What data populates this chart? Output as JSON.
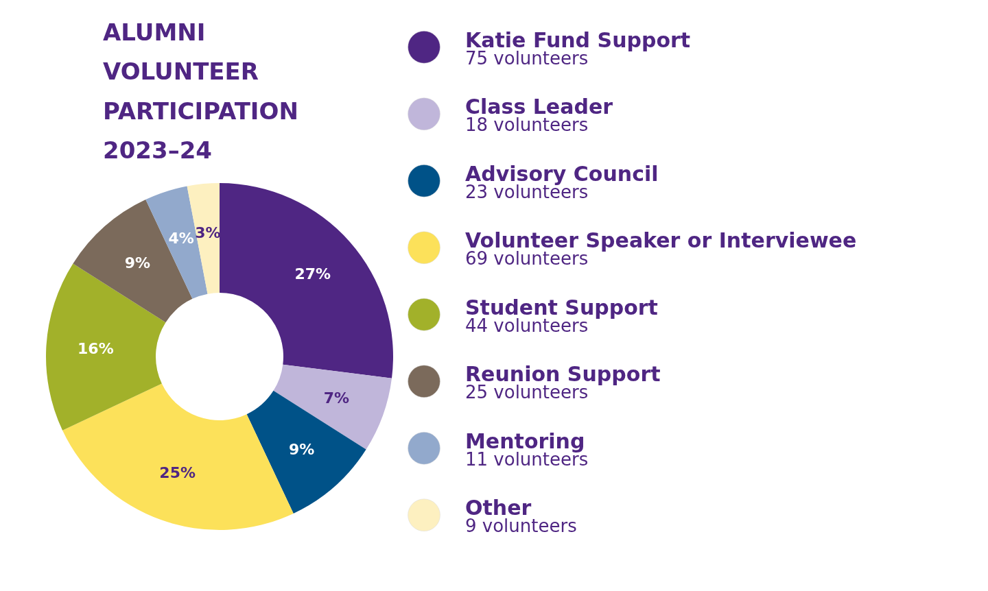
{
  "chart_data": {
    "type": "donut",
    "title": "ALUMNI VOLUNTEER PARTICIPATION 2023–24",
    "categories": [
      "Katie Fund Support",
      "Class Leader",
      "Advisory Council",
      "Volunteer Speaker or Interviewee",
      "Student Support",
      "Reunion Support",
      "Mentoring",
      "Other"
    ],
    "values": [
      27,
      7,
      9,
      25,
      16,
      9,
      4,
      3
    ],
    "colors": [
      "#4f2683",
      "#c0b6da",
      "#005288",
      "#fce15a",
      "#a2b12a",
      "#7b6a5b",
      "#92a9cc",
      "#fdf0c0"
    ],
    "value_labels": [
      "27%",
      "7%",
      "9%",
      "25%",
      "16%",
      "9%",
      "4%",
      "3%"
    ],
    "annotations": [
      "75 volunteers",
      "18 volunteers",
      "23 volunteers",
      "69 volunteers",
      "44 volunteers",
      "25 volunteers",
      "11 volunteers",
      "9 volunteers"
    ],
    "legend": "right"
  }
}
